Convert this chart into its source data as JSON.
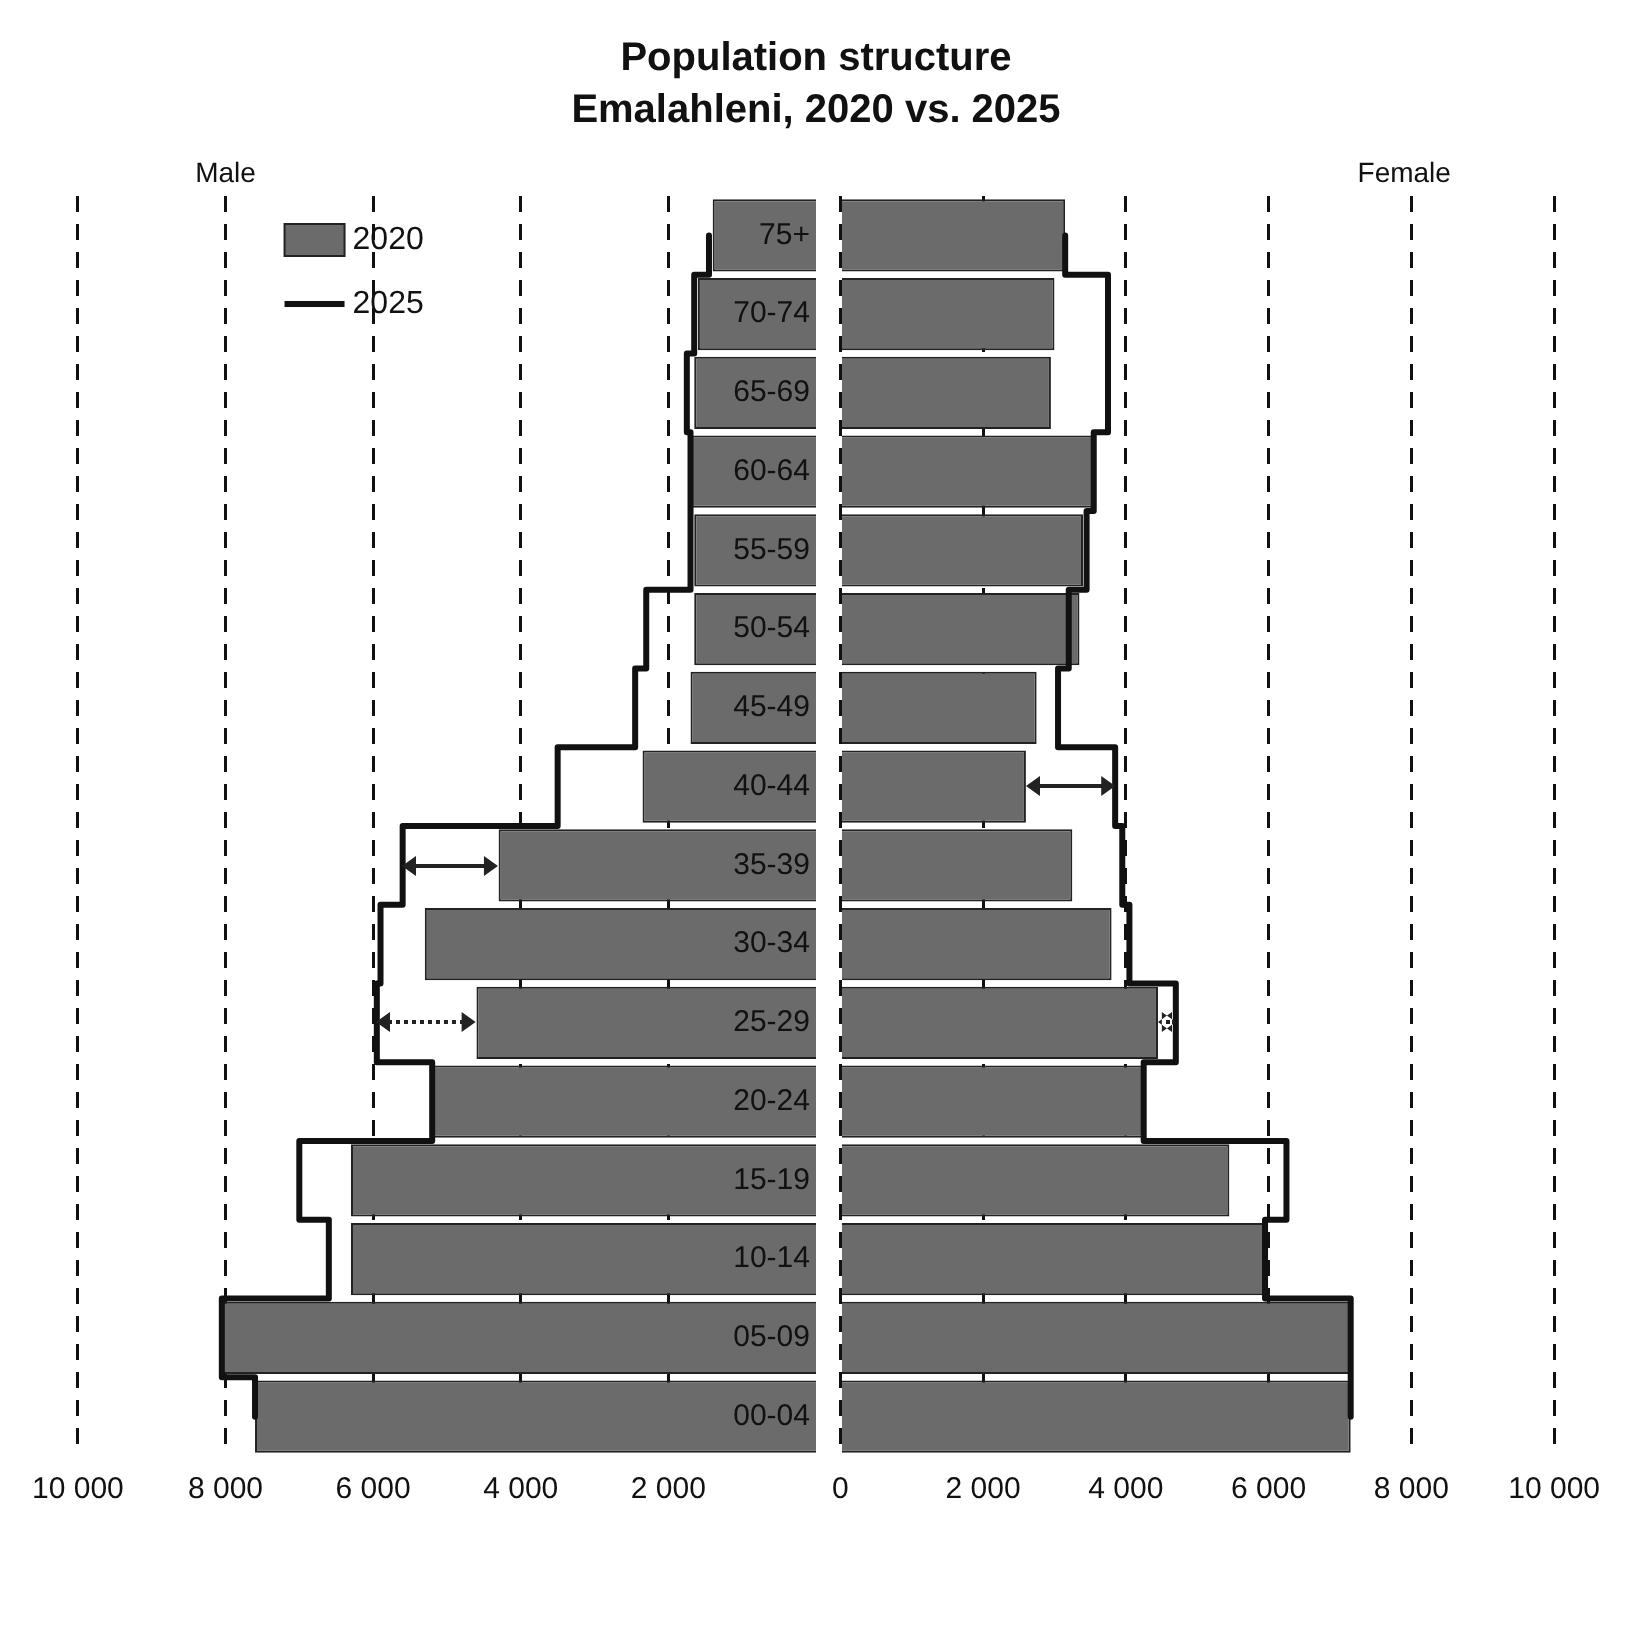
{
  "chart_data": [
    {
      "type": "bar",
      "orientation": "horizontal",
      "title": "Population structure",
      "subtitle": "Emalahleni, 2020 vs. 2025",
      "categories": [
        "75+",
        "70-74",
        "65-69",
        "60-64",
        "55-59",
        "50-54",
        "45-49",
        "40-44",
        "35-39",
        "30-34",
        "25-29",
        "20-24",
        "15-19",
        "10-14",
        "05-09",
        "00-04"
      ],
      "series": [
        {
          "name": "2020",
          "color": "#6b6b6b",
          "values": [
            1400,
            1600,
            1650,
            1700,
            1650,
            1650,
            1700,
            2350,
            4300,
            5300,
            4600,
            5200,
            6300,
            6300,
            8050,
            7600
          ]
        },
        {
          "name": "2025",
          "type": "step",
          "color": "#111111",
          "values": [
            1450,
            1650,
            1750,
            1700,
            1700,
            2300,
            2450,
            3500,
            5600,
            5900,
            5950,
            5200,
            7000,
            6600,
            8050,
            7600
          ]
        }
      ],
      "xlim": [
        10000,
        0
      ],
      "xticks": [
        {
          "value": 10000,
          "label": "10 000"
        },
        {
          "value": 8000,
          "label": "8 000"
        },
        {
          "value": 6000,
          "label": "6 000"
        },
        {
          "value": 4000,
          "label": "4 000"
        },
        {
          "value": 2000,
          "label": "2 000"
        }
      ],
      "grid": "x",
      "legend": "top left",
      "annotations": [
        "Male"
      ]
    },
    {
      "type": "bar",
      "orientation": "horizontal",
      "series": [
        {
          "color": "#6b6b6b",
          "values": [
            3150,
            3000,
            2950,
            3550,
            3400,
            3350,
            2750,
            2600,
            3250,
            3800,
            4450,
            4250,
            5450,
            5950,
            7150,
            7150
          ]
        },
        {
          "type": "step",
          "color": "#111111",
          "values": [
            3150,
            3750,
            3750,
            3550,
            3450,
            3200,
            3050,
            3850,
            3950,
            4050,
            4700,
            4250,
            6250,
            5950,
            7150,
            7150
          ]
        }
      ],
      "xlim": [
        0,
        10000
      ],
      "xticks": [
        0,
        {
          "value": 2000,
          "label": "2 000"
        },
        {
          "value": 4000,
          "label": "4 000"
        },
        {
          "value": 6000,
          "label": "6 000"
        },
        {
          "value": 8000,
          "label": "8 000"
        },
        {
          "value": 10000,
          "label": "10 000"
        }
      ],
      "grid": "x",
      "tick_labels": "x",
      "annotations": [
        "Female"
      ]
    }
  ]
}
